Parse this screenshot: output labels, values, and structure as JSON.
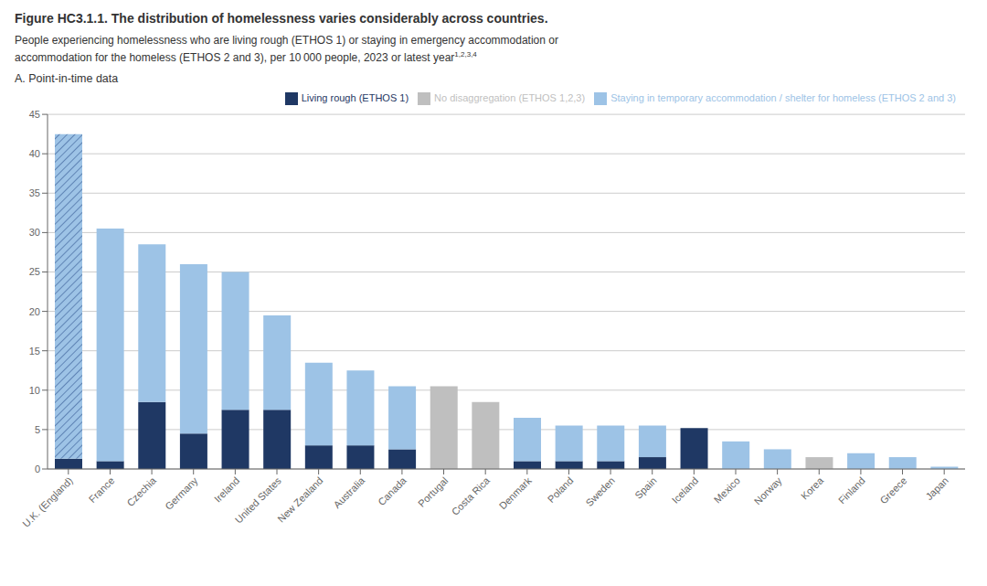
{
  "chart_data": {
    "type": "bar",
    "stacked": true,
    "title": "Figure HC3.1.1. The distribution of homelessness varies considerably across countries.",
    "subtitle": [
      "People experiencing homelessness who are living rough (ETHOS 1) or staying in emergency accommodation or",
      "accommodation for the homeless (ETHOS 2 and 3), per 10 000 people, 2023 or latest year"
    ],
    "annotations": [
      "1,2,3,4",
      "A. Point-in-time data"
    ],
    "categories": [
      "U.K. (England)",
      "France",
      "Czechia",
      "Germany",
      "Ireland",
      "United States",
      "New Zealand",
      "Australia",
      "Canada",
      "Portugal",
      "Costa Rica",
      "Denmark",
      "Poland",
      "Sweden",
      "Spain",
      "Iceland",
      "Mexico",
      "Norway",
      "Korea",
      "Finland",
      "Greece",
      "Japan"
    ],
    "series": [
      {
        "name": "Living rough (ETHOS 1)",
        "color": "#1F3864",
        "values": [
          1.3,
          1.0,
          8.5,
          4.5,
          7.5,
          7.5,
          3.0,
          3.0,
          2.5,
          0.0,
          0.0,
          1.0,
          1.0,
          1.0,
          1.5,
          5.2,
          0.0,
          0.0,
          0.0,
          0.0,
          0.0,
          0.0
        ]
      },
      {
        "name": "Staying in temporary accommodation / shelter for homeless (ETHOS 2 and 3)",
        "color": "#9DC3E6",
        "values": [
          0.0,
          29.5,
          20.0,
          21.5,
          17.5,
          12.0,
          10.5,
          9.5,
          8.0,
          0.0,
          0.0,
          5.5,
          4.5,
          4.5,
          4.0,
          0.0,
          3.5,
          2.5,
          0.0,
          2.0,
          1.5,
          0.3
        ]
      },
      {
        "name": "No disaggregation (ETHOS 1,2,3)",
        "color": "#BFBFBF",
        "values": [
          0.0,
          0.0,
          0.0,
          0.0,
          0.0,
          0.0,
          0.0,
          0.0,
          0.0,
          10.5,
          8.5,
          0.0,
          0.0,
          0.0,
          0.0,
          0.0,
          0.0,
          0.0,
          1.5,
          0.0,
          0.0,
          0.0
        ]
      },
      {
        "color": "#9DC3E6",
        "values": [
          41.2,
          0.0,
          0.0,
          0.0,
          0.0,
          0.0,
          0.0,
          0.0,
          0.0,
          0.0,
          0.0,
          0.0,
          0.0,
          0.0,
          0.0,
          0.0,
          0.0,
          0.0,
          0.0,
          0.0,
          0.0,
          0.0
        ]
      }
    ],
    "ylim": [
      0,
      45
    ],
    "yticks": [
      0,
      5,
      10,
      15,
      20,
      25,
      30,
      35,
      40,
      45
    ],
    "grid": true,
    "legend": "upper right"
  }
}
